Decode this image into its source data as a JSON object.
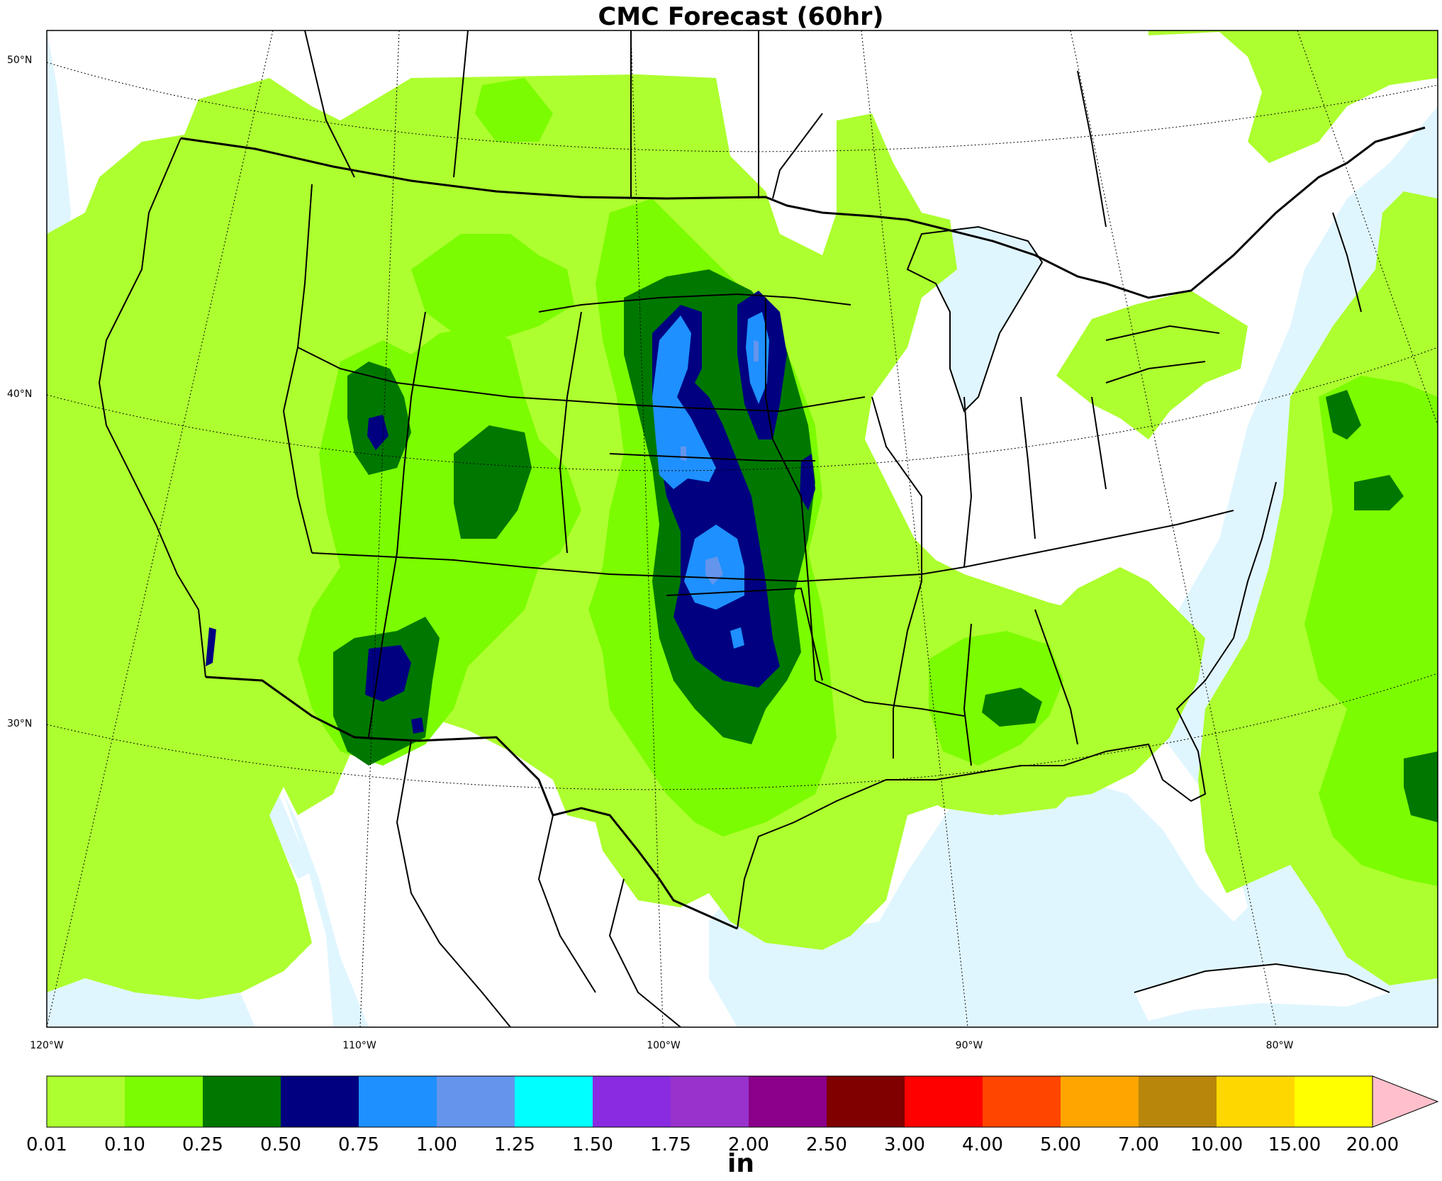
{
  "title": "CMC Forecast (60hr)",
  "lat_labels": [
    "50°N",
    "40°N",
    "30°N"
  ],
  "lon_labels": [
    "120°W",
    "110°W",
    "100°W",
    "90°W",
    "80°W"
  ],
  "colorbar": {
    "unit": "in",
    "ticks": [
      "0.01",
      "0.10",
      "0.25",
      "0.50",
      "0.75",
      "1.00",
      "1.25",
      "1.50",
      "1.75",
      "2.00",
      "2.50",
      "3.00",
      "4.00",
      "5.00",
      "7.00",
      "10.00",
      "15.00",
      "20.00"
    ],
    "colors": [
      "#adff2f",
      "#7cfc00",
      "#007800",
      "#000080",
      "#1e90ff",
      "#6495ed",
      "#00ffff",
      "#8a2be2",
      "#9932cc",
      "#8b008b",
      "#800000",
      "#ff0000",
      "#ff4500",
      "#ffa500",
      "#b8860b",
      "#ffd700",
      "#ffff00"
    ],
    "extend_color": "#ffc0cb"
  },
  "colors": {
    "water": "#e0f6ff",
    "land": "#ffffff"
  }
}
